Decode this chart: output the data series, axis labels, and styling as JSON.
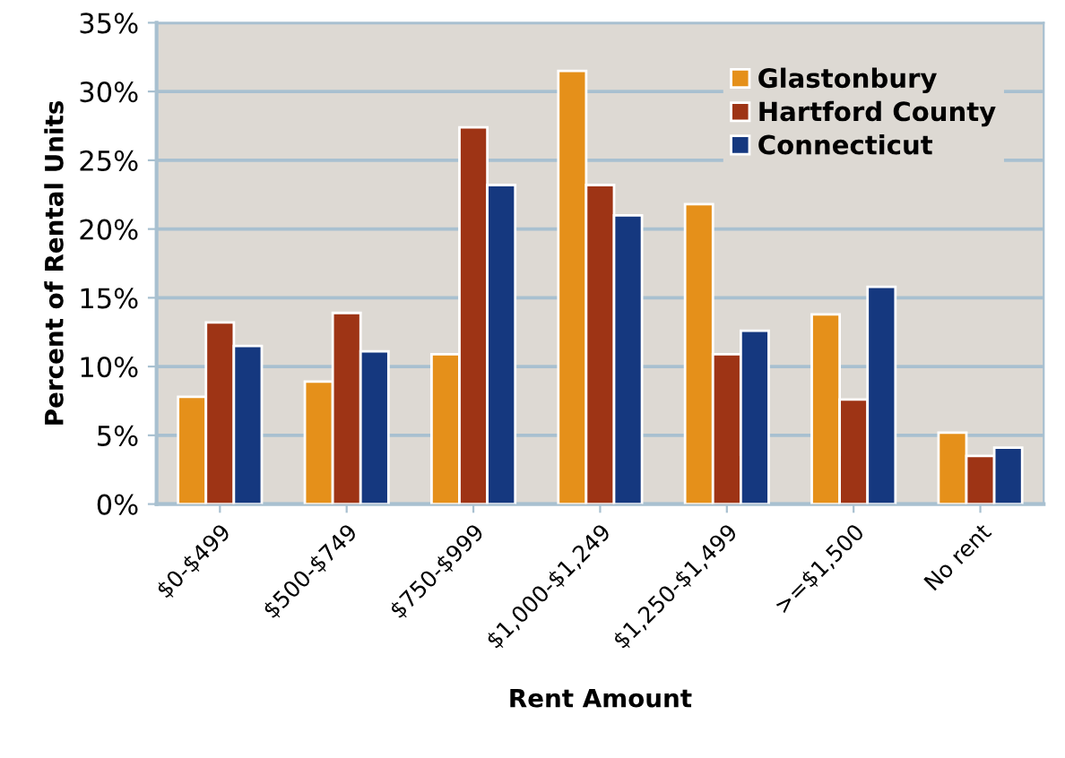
{
  "chart_data": {
    "type": "bar",
    "xlabel": "Rent Amount",
    "ylabel": "Percent of Rental Units",
    "categories": [
      "$0-$499",
      "$500-$749",
      "$750-$999",
      "$1,000-$1,249",
      "$1,250-$1,499",
      ">=$1,500",
      "No rent"
    ],
    "series": [
      {
        "name": "Glastonbury",
        "color": "#e5901a",
        "values": [
          7.8,
          8.9,
          10.9,
          31.5,
          21.8,
          13.8,
          5.2
        ]
      },
      {
        "name": "Hartford County",
        "color": "#9e3415",
        "values": [
          13.2,
          13.9,
          27.4,
          23.2,
          10.9,
          7.6,
          3.5
        ]
      },
      {
        "name": "Connecticut",
        "color": "#15387f",
        "values": [
          11.5,
          11.1,
          23.2,
          21.0,
          12.6,
          15.8,
          4.1
        ]
      }
    ],
    "ylim": [
      0,
      35
    ],
    "yticks": [
      {
        "value": 0,
        "label": "0%"
      },
      {
        "value": 5,
        "label": "5%"
      },
      {
        "value": 10,
        "label": "10%"
      },
      {
        "value": 15,
        "label": "15%"
      },
      {
        "value": 20,
        "label": "20%"
      },
      {
        "value": 25,
        "label": "25%"
      },
      {
        "value": 30,
        "label": "30%"
      },
      {
        "value": 35,
        "label": "35%"
      }
    ],
    "grid": "y",
    "legend": "top right"
  }
}
